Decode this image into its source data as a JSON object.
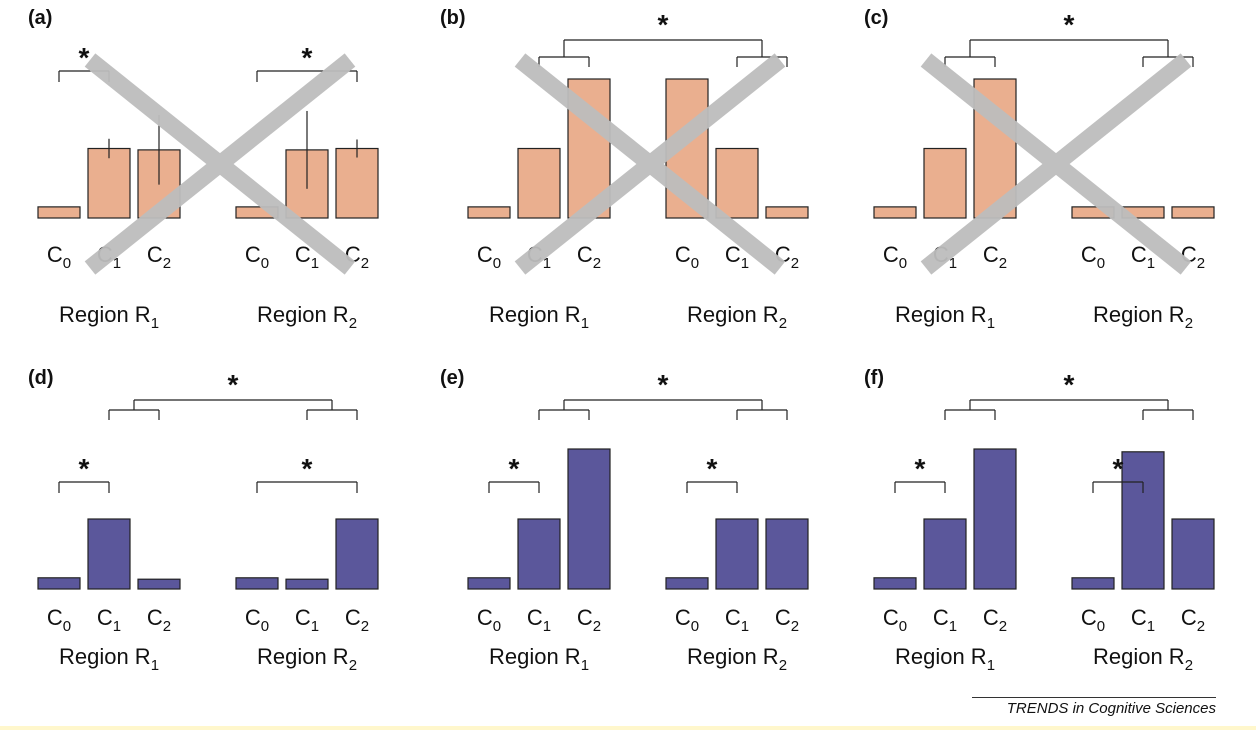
{
  "colors": {
    "invalid": "#eaaf8f",
    "valid": "#5b579b",
    "cross": "#bdbdbd",
    "stroke": "#222222"
  },
  "credit": "TRENDS in Cognitive Sciences",
  "chart_data": [
    {
      "type": "bar",
      "panel_label": "(a)",
      "crossed_out": true,
      "color_role": "invalid",
      "regions": [
        {
          "label": "Region R",
          "subscript": "1",
          "conditions": [
            "C",
            "C",
            "C"
          ],
          "condition_subscripts": [
            "0",
            "1",
            "2"
          ],
          "values": [
            0.08,
            0.5,
            0.49
          ],
          "error_bars": [
            0,
            0.14,
            0.5
          ]
        },
        {
          "label": "Region R",
          "subscript": "2",
          "conditions": [
            "C",
            "C",
            "C"
          ],
          "condition_subscripts": [
            "0",
            "1",
            "2"
          ],
          "values": [
            0.08,
            0.49,
            0.5
          ],
          "error_bars": [
            0,
            0.56,
            0.13
          ]
        }
      ],
      "within_region_significance": [
        {
          "region": 0,
          "from": 0,
          "to": 1,
          "label": "*"
        },
        {
          "region": 1,
          "from": 0,
          "to": 2,
          "label": "*"
        }
      ],
      "between_region_significance": null
    },
    {
      "type": "bar",
      "panel_label": "(b)",
      "crossed_out": true,
      "color_role": "invalid",
      "regions": [
        {
          "label": "Region R",
          "subscript": "1",
          "conditions": [
            "C",
            "C",
            "C"
          ],
          "condition_subscripts": [
            "0",
            "1",
            "2"
          ],
          "values": [
            0.08,
            0.5,
            1.0
          ],
          "error_bars": [
            0,
            0,
            0
          ]
        },
        {
          "label": "Region R",
          "subscript": "2",
          "conditions": [
            "C",
            "C",
            "C"
          ],
          "condition_subscripts": [
            "0",
            "1",
            "2"
          ],
          "values": [
            1.0,
            0.5,
            0.08
          ],
          "error_bars": [
            0,
            0,
            0
          ]
        }
      ],
      "within_region_significance": [],
      "between_region_significance": {
        "label": "*"
      }
    },
    {
      "type": "bar",
      "panel_label": "(c)",
      "crossed_out": true,
      "color_role": "invalid",
      "regions": [
        {
          "label": "Region R",
          "subscript": "1",
          "conditions": [
            "C",
            "C",
            "C"
          ],
          "condition_subscripts": [
            "0",
            "1",
            "2"
          ],
          "values": [
            0.08,
            0.5,
            1.0
          ],
          "error_bars": [
            0,
            0,
            0
          ]
        },
        {
          "label": "Region R",
          "subscript": "2",
          "conditions": [
            "C",
            "C",
            "C"
          ],
          "condition_subscripts": [
            "0",
            "1",
            "2"
          ],
          "values": [
            0.08,
            0.08,
            0.08
          ],
          "error_bars": [
            0,
            0,
            0
          ]
        }
      ],
      "within_region_significance": [],
      "between_region_significance": {
        "label": "*"
      }
    },
    {
      "type": "bar",
      "panel_label": "(d)",
      "crossed_out": false,
      "color_role": "valid",
      "regions": [
        {
          "label": "Region R",
          "subscript": "1",
          "conditions": [
            "C",
            "C",
            "C"
          ],
          "condition_subscripts": [
            "0",
            "1",
            "2"
          ],
          "values": [
            0.08,
            0.5,
            0.07
          ],
          "error_bars": [
            0,
            0,
            0
          ]
        },
        {
          "label": "Region R",
          "subscript": "2",
          "conditions": [
            "C",
            "C",
            "C"
          ],
          "condition_subscripts": [
            "0",
            "1",
            "2"
          ],
          "values": [
            0.08,
            0.07,
            0.5
          ],
          "error_bars": [
            0,
            0,
            0
          ]
        }
      ],
      "within_region_significance": [
        {
          "region": 0,
          "from": 0,
          "to": 1,
          "label": "*"
        },
        {
          "region": 1,
          "from": 0,
          "to": 2,
          "label": "*"
        }
      ],
      "between_region_significance": {
        "label": "*"
      }
    },
    {
      "type": "bar",
      "panel_label": "(e)",
      "crossed_out": false,
      "color_role": "valid",
      "regions": [
        {
          "label": "Region R",
          "subscript": "1",
          "conditions": [
            "C",
            "C",
            "C"
          ],
          "condition_subscripts": [
            "0",
            "1",
            "2"
          ],
          "values": [
            0.08,
            0.5,
            1.0
          ],
          "error_bars": [
            0,
            0,
            0
          ]
        },
        {
          "label": "Region R",
          "subscript": "2",
          "conditions": [
            "C",
            "C",
            "C"
          ],
          "condition_subscripts": [
            "0",
            "1",
            "2"
          ],
          "values": [
            0.08,
            0.5,
            0.5
          ],
          "error_bars": [
            0,
            0,
            0
          ]
        }
      ],
      "within_region_significance": [
        {
          "region": 0,
          "from": 0,
          "to": 1,
          "label": "*"
        },
        {
          "region": 1,
          "from": 0,
          "to": 1,
          "label": "*"
        }
      ],
      "between_region_significance": {
        "label": "*"
      }
    },
    {
      "type": "bar",
      "panel_label": "(f)",
      "crossed_out": false,
      "color_role": "valid",
      "regions": [
        {
          "label": "Region R",
          "subscript": "1",
          "conditions": [
            "C",
            "C",
            "C"
          ],
          "condition_subscripts": [
            "0",
            "1",
            "2"
          ],
          "values": [
            0.08,
            0.5,
            1.0
          ],
          "error_bars": [
            0,
            0,
            0
          ]
        },
        {
          "label": "Region R",
          "subscript": "2",
          "conditions": [
            "C",
            "C",
            "C"
          ],
          "condition_subscripts": [
            "0",
            "1",
            "2"
          ],
          "values": [
            0.08,
            0.98,
            0.5
          ],
          "error_bars": [
            0,
            0,
            0
          ]
        }
      ],
      "within_region_significance": [
        {
          "region": 0,
          "from": 0,
          "to": 1,
          "label": "*"
        },
        {
          "region": 1,
          "from": 0,
          "to": 1,
          "label": "*"
        }
      ],
      "between_region_significance": {
        "label": "*"
      }
    }
  ]
}
